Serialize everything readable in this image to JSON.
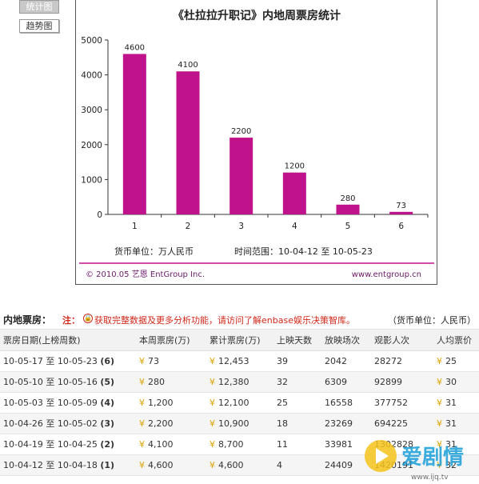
{
  "tabs": {
    "active": "统计图",
    "inactive": "趋势图"
  },
  "chart_data": {
    "type": "bar",
    "title": "《杜拉拉升职记》内地周票房统计",
    "categories": [
      "1",
      "2",
      "3",
      "4",
      "5",
      "6"
    ],
    "values": [
      4600,
      4100,
      2200,
      1200,
      280,
      73
    ],
    "data_labels": [
      "4600",
      "4100",
      "2200",
      "1200",
      "280",
      "73"
    ],
    "y_ticks": [
      "0",
      "1000",
      "2000",
      "3000",
      "4000",
      "5000"
    ],
    "ylim": [
      0,
      5000
    ],
    "bar_color": "#c0128a",
    "xlabel": "",
    "ylabel": "",
    "currency_note": "货币单位：万人民币",
    "range_note": "时间范围：10-04-12 至 10-05-23",
    "copyright": "© 2010.05 艺恩 EntGroup Inc.",
    "site": "www.entgroup.cn"
  },
  "notice": {
    "label": "内地票房：",
    "prefix": "注：",
    "text": "获取完整数据及更多分析功能，请访问了解enbase娱乐决策智库。",
    "unit": "（货币单位：人民币）"
  },
  "table": {
    "headers": [
      "票房日期(上榜周数)",
      "本周票房(万)",
      "累计票房(万)",
      "上映天数",
      "放映场次",
      "观影人次",
      "人均票价"
    ],
    "rows": [
      {
        "date": "10-05-17 至  10-05-23",
        "week": "(6)",
        "weekly": "73",
        "total": "12,453",
        "days": "39",
        "screenings": "2042",
        "admissions": "28272",
        "avg": "25"
      },
      {
        "date": "10-05-10 至  10-05-16",
        "week": "(5)",
        "weekly": "280",
        "total": "12,380",
        "days": "32",
        "screenings": "6309",
        "admissions": "92899",
        "avg": "30"
      },
      {
        "date": "10-05-03 至  10-05-09",
        "week": "(4)",
        "weekly": "1,200",
        "total": "12,100",
        "days": "25",
        "screenings": "16558",
        "admissions": "377752",
        "avg": "31"
      },
      {
        "date": "10-04-26 至  10-05-02",
        "week": "(3)",
        "weekly": "2,200",
        "total": "10,900",
        "days": "18",
        "screenings": "23269",
        "admissions": "694225",
        "avg": "31"
      },
      {
        "date": "10-04-19 至  10-04-25",
        "week": "(2)",
        "weekly": "4,100",
        "total": "8,700",
        "days": "11",
        "screenings": "33981",
        "admissions": "1302828",
        "avg": "31"
      },
      {
        "date": "10-04-12 至  10-04-18",
        "week": "(1)",
        "weekly": "4,600",
        "total": "4,600",
        "days": "4",
        "screenings": "24409",
        "admissions": "1420191",
        "avg": "32"
      }
    ],
    "yen": "¥"
  },
  "watermark": {
    "brand": "爱剧情",
    "url": "www.ijq.tv",
    "brand_color": "#1a9fd8"
  }
}
